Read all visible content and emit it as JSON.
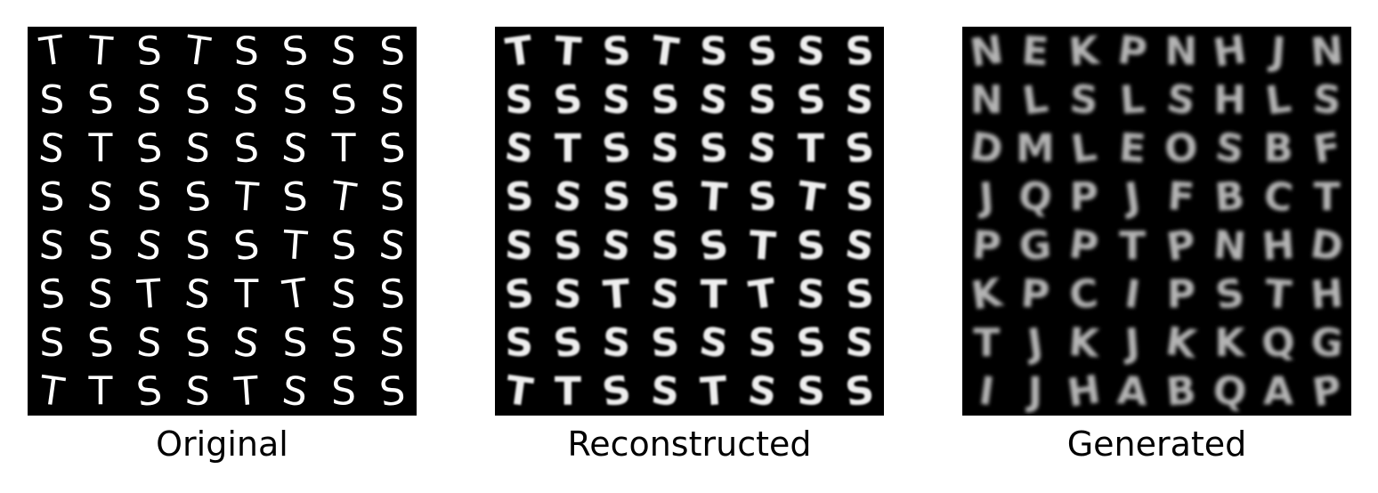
{
  "panels": [
    {
      "caption": "Original",
      "style": "sharp",
      "rows": [
        [
          "T",
          "T",
          "S",
          "T",
          "S",
          "S",
          "S",
          "S"
        ],
        [
          "S",
          "S",
          "S",
          "S",
          "S",
          "S",
          "S",
          "S"
        ],
        [
          "S",
          "T",
          "S",
          "S",
          "S",
          "S",
          "T",
          "S"
        ],
        [
          "S",
          "S",
          "S",
          "S",
          "T",
          "S",
          "T",
          "S"
        ],
        [
          "S",
          "S",
          "S",
          "S",
          "S",
          "T",
          "S",
          "S"
        ],
        [
          "S",
          "S",
          "T",
          "S",
          "T",
          "T",
          "S",
          "S"
        ],
        [
          "S",
          "S",
          "S",
          "S",
          "S",
          "S",
          "S",
          "S"
        ],
        [
          "T",
          "T",
          "S",
          "S",
          "T",
          "S",
          "S",
          "S"
        ]
      ]
    },
    {
      "caption": "Reconstructed",
      "style": "soft",
      "rows": [
        [
          "T",
          "T",
          "S",
          "T",
          "S",
          "S",
          "S",
          "S"
        ],
        [
          "S",
          "S",
          "S",
          "S",
          "S",
          "S",
          "S",
          "S"
        ],
        [
          "S",
          "T",
          "S",
          "S",
          "S",
          "S",
          "T",
          "S"
        ],
        [
          "S",
          "S",
          "S",
          "S",
          "T",
          "S",
          "T",
          "S"
        ],
        [
          "S",
          "S",
          "S",
          "S",
          "S",
          "T",
          "S",
          "S"
        ],
        [
          "S",
          "S",
          "T",
          "S",
          "T",
          "T",
          "S",
          "S"
        ],
        [
          "S",
          "S",
          "S",
          "S",
          "S",
          "S",
          "S",
          "S"
        ],
        [
          "T",
          "T",
          "S",
          "S",
          "T",
          "S",
          "S",
          "S"
        ]
      ]
    },
    {
      "caption": "Generated",
      "style": "blurry",
      "rows": [
        [
          "N",
          "E",
          "K",
          "P",
          "N",
          "H",
          "J",
          "N"
        ],
        [
          "N",
          "L",
          "S",
          "L",
          "S",
          "H",
          "L",
          "S"
        ],
        [
          "D",
          "M",
          "L",
          "E",
          "O",
          "S",
          "B",
          "F"
        ],
        [
          "J",
          "Q",
          "P",
          "J",
          "F",
          "B",
          "C",
          "T"
        ],
        [
          "P",
          "G",
          "P",
          "T",
          "P",
          "N",
          "H",
          "D"
        ],
        [
          "K",
          "P",
          "C",
          "I",
          "P",
          "S",
          "T",
          "H"
        ],
        [
          "T",
          "J",
          "K",
          "J",
          "K",
          "K",
          "Q",
          "G"
        ],
        [
          "I",
          "J",
          "H",
          "A",
          "B",
          "Q",
          "A",
          "P"
        ]
      ]
    }
  ]
}
